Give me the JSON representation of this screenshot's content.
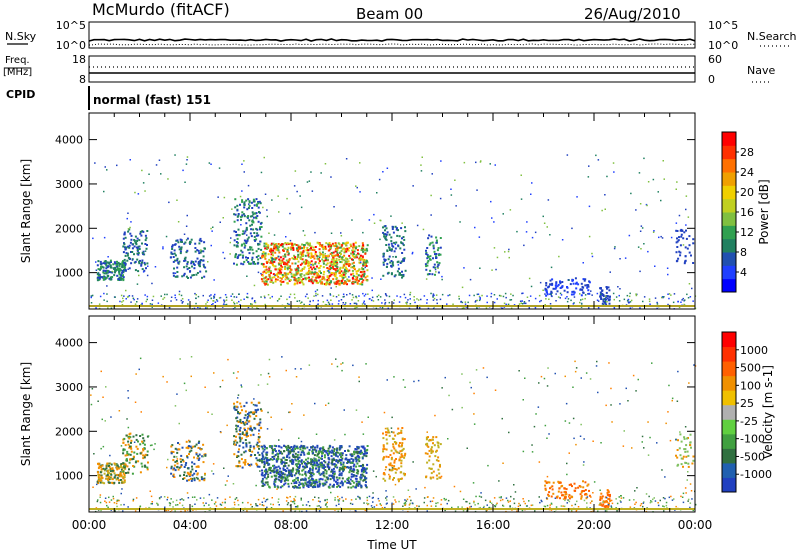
{
  "header": {
    "station": "McMurdo (fitACF)",
    "beam": "Beam 00",
    "date": "26/Aug/2010"
  },
  "strip_labels": {
    "nsky": "N.Sky",
    "nsearch": "N.Search",
    "freq_line1": "Freq.",
    "freq_line2": "[MHz]",
    "nave": "Nave",
    "cpid": "CPID",
    "cpid_value": "normal (fast) 151"
  },
  "chart_data": [
    {
      "type": "line",
      "name": "noise-strip",
      "left_ticks": [
        "10^5",
        "10^0"
      ],
      "right_ticks": [
        "10^5",
        "10^0"
      ]
    },
    {
      "type": "line",
      "name": "freq-nave-strip",
      "left_ticks": [
        "18",
        "8"
      ],
      "right_ticks": [
        "60",
        "0"
      ]
    },
    {
      "type": "heatmap",
      "name": "power",
      "ylabel": "Slant Range [km]",
      "xlabel": "",
      "ylim": [
        180,
        4600
      ],
      "xlim": [
        0,
        24
      ],
      "yticks": [
        1000,
        2000,
        3000,
        4000
      ],
      "colorbar": {
        "label": "Power [dB]",
        "ticks": [
          "28",
          "24",
          "20",
          "16",
          "12",
          "8",
          "4"
        ],
        "colors": [
          "#0000ff",
          "#1f3fff",
          "#2050b0",
          "#208060",
          "#30a050",
          "#80c040",
          "#c0d020",
          "#f0d000",
          "#f0a000",
          "#ff7000",
          "#ff3000",
          "#ff0000"
        ]
      }
    },
    {
      "type": "heatmap",
      "name": "velocity",
      "ylabel": "Slant Range [km]",
      "xlabel": "Time UT",
      "ylim": [
        180,
        4600
      ],
      "xlim": [
        0,
        24
      ],
      "yticks": [
        1000,
        2000,
        3000,
        4000
      ],
      "xticks": [
        "00:00",
        "04:00",
        "08:00",
        "12:00",
        "16:00",
        "20:00",
        "00:00"
      ],
      "colorbar": {
        "label": "Velocity [m s-1]",
        "ticks": [
          "1000",
          "500",
          "100",
          "25",
          "-25",
          "-100",
          "-500",
          "-1000"
        ],
        "colors": [
          "#2040c0",
          "#2060b0",
          "#307040",
          "#40a040",
          "#60d040",
          "#b0b0b0",
          "#f0c000",
          "#f09000",
          "#ff6000",
          "#ff3000",
          "#ff0000"
        ]
      }
    }
  ]
}
